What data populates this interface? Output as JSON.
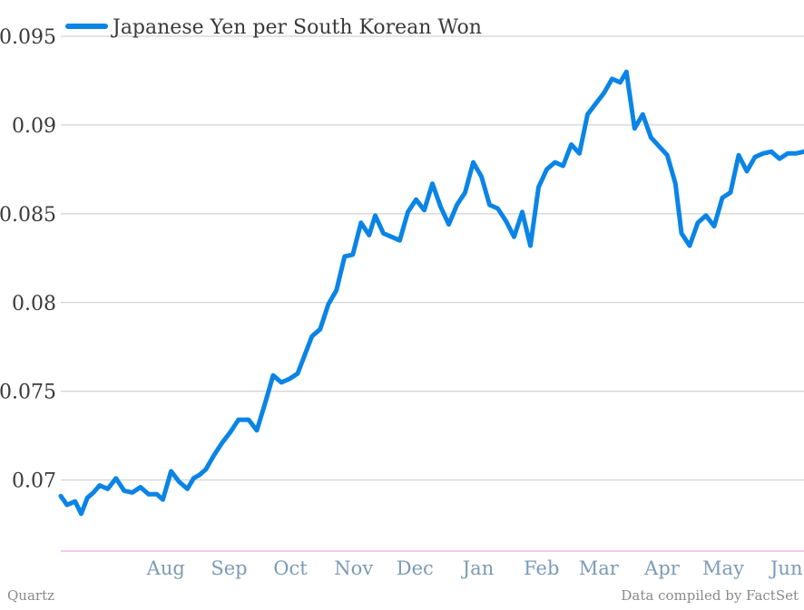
{
  "source_label": "Quartz",
  "credit_label": "Data compiled by FactSet",
  "colors": {
    "line": "#0a84e6",
    "grid": "#c8c8c8",
    "baseline": "#e493e4",
    "ytick": "#3a3a3a",
    "xtick": "#7c9bb6"
  },
  "chart_data": {
    "type": "line",
    "title": "",
    "xlabel": "",
    "ylabel": "",
    "legend_placement": "top-left",
    "grid": true,
    "ylim": [
      0.066,
      0.095
    ],
    "yticks": [
      0.07,
      0.075,
      0.08,
      0.085,
      0.09,
      0.095
    ],
    "ytick_labels": [
      "0.07",
      "0.075",
      "0.08",
      "0.085",
      "0.09",
      "0.095"
    ],
    "xlim": [
      "2013-07-01",
      "2014-06-30"
    ],
    "xticks": [
      {
        "label": "Aug",
        "date": "2013-08-01"
      },
      {
        "label": "Sep",
        "date": "2013-09-01"
      },
      {
        "label": "Oct",
        "date": "2013-10-01"
      },
      {
        "label": "Nov",
        "date": "2013-11-01"
      },
      {
        "label": "Dec",
        "date": "2013-12-01"
      },
      {
        "label": "Jan",
        "date": "2014-01-01"
      },
      {
        "label": "Feb",
        "date": "2014-02-01"
      },
      {
        "label": "Mar",
        "date": "2014-03-01"
      },
      {
        "label": "Apr",
        "date": "2014-04-01"
      },
      {
        "label": "May",
        "date": "2014-05-01"
      },
      {
        "label": "Jun",
        "date": "2014-06-01"
      }
    ],
    "series": [
      {
        "name": "Japanese Yen per South Korean Won",
        "x": [
          "2013-07-01",
          "2013-07-04",
          "2013-07-08",
          "2013-07-11",
          "2013-07-14",
          "2013-07-17",
          "2013-07-20",
          "2013-07-24",
          "2013-07-28",
          "2013-08-01",
          "2013-08-05",
          "2013-08-09",
          "2013-08-13",
          "2013-08-17",
          "2013-08-20",
          "2013-08-24",
          "2013-08-28",
          "2013-09-01",
          "2013-09-04",
          "2013-09-07",
          "2013-09-10",
          "2013-09-14",
          "2013-09-18",
          "2013-09-22",
          "2013-09-26",
          "2013-10-01",
          "2013-10-05",
          "2013-10-09",
          "2013-10-13",
          "2013-10-17",
          "2013-10-21",
          "2013-10-25",
          "2013-10-29",
          "2013-11-01",
          "2013-11-05",
          "2013-11-09",
          "2013-11-13",
          "2013-11-17",
          "2013-11-21",
          "2013-11-25",
          "2013-11-29",
          "2013-12-02",
          "2013-12-06",
          "2013-12-10",
          "2013-12-14",
          "2013-12-18",
          "2013-12-22",
          "2013-12-26",
          "2013-12-30",
          "2014-01-03",
          "2014-01-07",
          "2014-01-11",
          "2014-01-15",
          "2014-01-19",
          "2014-01-23",
          "2014-01-27",
          "2014-01-31",
          "2014-02-04",
          "2014-02-08",
          "2014-02-12",
          "2014-02-16",
          "2014-02-20",
          "2014-02-24",
          "2014-02-28",
          "2014-03-04",
          "2014-03-08",
          "2014-03-12",
          "2014-03-16",
          "2014-03-20",
          "2014-03-24",
          "2014-03-28",
          "2014-04-01",
          "2014-04-04",
          "2014-04-08",
          "2014-04-12",
          "2014-04-16",
          "2014-04-20",
          "2014-04-24",
          "2014-04-28",
          "2014-05-01",
          "2014-05-05",
          "2014-05-09",
          "2014-05-13",
          "2014-05-17",
          "2014-05-21",
          "2014-05-25",
          "2014-05-29",
          "2014-06-02",
          "2014-06-06",
          "2014-06-10",
          "2014-06-14",
          "2014-06-18",
          "2014-06-22",
          "2014-06-26",
          "2014-06-30"
        ],
        "values": [
          0.0691,
          0.0686,
          0.0688,
          0.0681,
          0.069,
          0.0693,
          0.0697,
          0.0695,
          0.0701,
          0.0694,
          0.0693,
          0.0696,
          0.0692,
          0.0692,
          0.0689,
          0.0705,
          0.0699,
          0.0695,
          0.0701,
          0.0703,
          0.0706,
          0.0714,
          0.0721,
          0.0727,
          0.0734,
          0.0734,
          0.0728,
          0.0743,
          0.0759,
          0.0755,
          0.0757,
          0.076,
          0.0772,
          0.0781,
          0.0785,
          0.0799,
          0.0807,
          0.0826,
          0.0827,
          0.0845,
          0.0838,
          0.0849,
          0.0839,
          0.0837,
          0.0835,
          0.0851,
          0.0858,
          0.0852,
          0.0867,
          0.0854,
          0.0844,
          0.0855,
          0.0862,
          0.0879,
          0.0871,
          0.0855,
          0.0853,
          0.0846,
          0.0837,
          0.0851,
          0.0832,
          0.0865,
          0.0875,
          0.0879,
          0.0877,
          0.0889,
          0.0884,
          0.0906,
          0.0912,
          0.0918,
          0.0926,
          0.0924,
          0.093,
          0.0898,
          0.0906,
          0.0893,
          0.0888,
          0.0883,
          0.0867,
          0.0839,
          0.0832,
          0.0845,
          0.0849,
          0.0843,
          0.0859,
          0.0862,
          0.0883,
          0.0874,
          0.0882,
          0.0884,
          0.0885,
          0.0881,
          0.0884,
          0.0884,
          0.0885
        ]
      }
    ]
  }
}
